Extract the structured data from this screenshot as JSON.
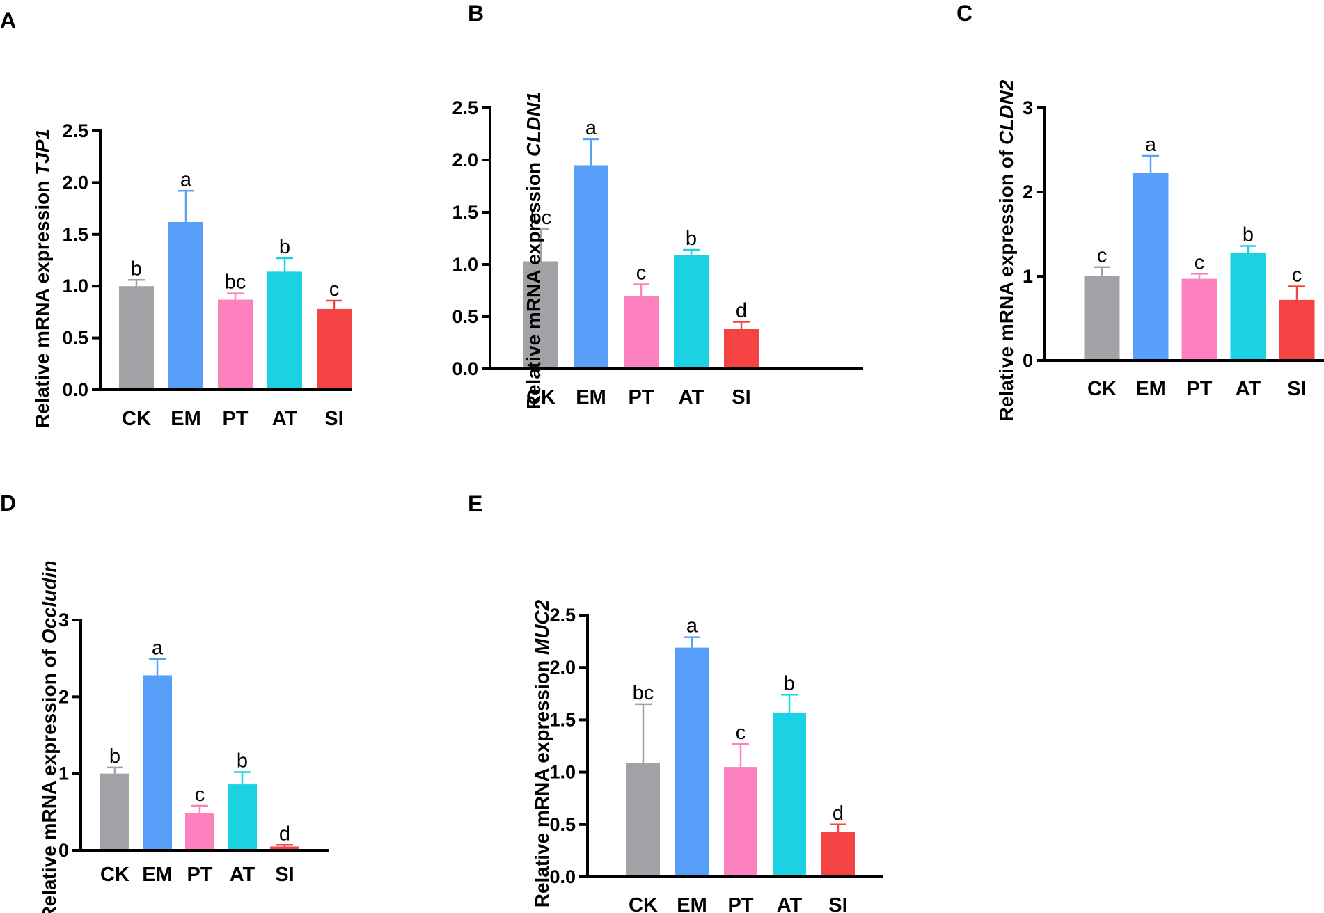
{
  "colors": {
    "CK": "#a2a1a6",
    "EM": "#579ff9",
    "PT": "#fd81be",
    "AT": "#1ad2e4",
    "SI": "#f54343"
  },
  "chart_data": [
    {
      "panel": "A",
      "type": "bar",
      "ylabel": "Relative mRNA expression ",
      "ylabel_gene": "TJP1",
      "categories": [
        "CK",
        "EM",
        "PT",
        "AT",
        "SI"
      ],
      "values": [
        1.0,
        1.62,
        0.87,
        1.14,
        0.78
      ],
      "errors": [
        0.06,
        0.3,
        0.06,
        0.13,
        0.08
      ],
      "letters": [
        "b",
        "a",
        "bc",
        "b",
        "c"
      ],
      "ylim": [
        0,
        2.5
      ],
      "yticks": [
        0.0,
        0.5,
        1.0,
        1.5,
        2.0,
        2.5
      ],
      "yticklabels": [
        "0.0",
        "0.5",
        "1.0",
        "1.5",
        "2.0",
        "2.5"
      ]
    },
    {
      "panel": "B",
      "type": "bar",
      "ylabel": "Relative mRNA expression ",
      "ylabel_gene": "CLDN1",
      "categories": [
        "CK",
        "EM",
        "PT",
        "AT",
        "SI"
      ],
      "values": [
        1.03,
        1.95,
        0.7,
        1.09,
        0.38
      ],
      "errors": [
        0.31,
        0.25,
        0.11,
        0.05,
        0.07
      ],
      "letters": [
        "bc",
        "a",
        "c",
        "b",
        "d"
      ],
      "ylim": [
        0,
        2.5
      ],
      "yticks": [
        0.0,
        0.5,
        1.0,
        1.5,
        2.0,
        2.5
      ],
      "yticklabels": [
        "0.0",
        "0.5",
        "1.0",
        "1.5",
        "2.0",
        "2.5"
      ]
    },
    {
      "panel": "C",
      "type": "bar",
      "ylabel": "Relative mRNA expression of ",
      "ylabel_gene": "CLDN2",
      "categories": [
        "CK",
        "EM",
        "PT",
        "AT",
        "SI"
      ],
      "values": [
        1.0,
        2.23,
        0.97,
        1.28,
        0.72
      ],
      "errors": [
        0.11,
        0.2,
        0.06,
        0.08,
        0.16
      ],
      "letters": [
        "c",
        "a",
        "c",
        "b",
        "c"
      ],
      "ylim": [
        0,
        3
      ],
      "yticks": [
        0,
        1,
        2,
        3
      ],
      "yticklabels": [
        "0",
        "1",
        "2",
        "3"
      ]
    },
    {
      "panel": "D",
      "type": "bar",
      "ylabel": "Relative mRNA expression of ",
      "ylabel_gene": "Occludin",
      "categories": [
        "CK",
        "EM",
        "PT",
        "AT",
        "SI"
      ],
      "values": [
        1.0,
        2.28,
        0.48,
        0.86,
        0.05
      ],
      "errors": [
        0.08,
        0.21,
        0.1,
        0.16,
        0.02
      ],
      "letters": [
        "b",
        "a",
        "c",
        "b",
        "d"
      ],
      "ylim": [
        0,
        3
      ],
      "yticks": [
        0,
        1,
        2,
        3
      ],
      "yticklabels": [
        "0",
        "1",
        "2",
        "3"
      ]
    },
    {
      "panel": "E",
      "type": "bar",
      "ylabel": "Relative mRNA expression ",
      "ylabel_gene": "MUC2",
      "categories": [
        "CK",
        "EM",
        "PT",
        "AT",
        "SI"
      ],
      "values": [
        1.09,
        2.19,
        1.05,
        1.57,
        0.43
      ],
      "errors": [
        0.56,
        0.1,
        0.22,
        0.17,
        0.07
      ],
      "letters": [
        "bc",
        "a",
        "c",
        "b",
        "d"
      ],
      "ylim": [
        0,
        2.5
      ],
      "yticks": [
        0.0,
        0.5,
        1.0,
        1.5,
        2.0,
        2.5
      ],
      "yticklabels": [
        "0.0",
        "0.5",
        "1.0",
        "1.5",
        "2.0",
        "2.5"
      ]
    }
  ]
}
